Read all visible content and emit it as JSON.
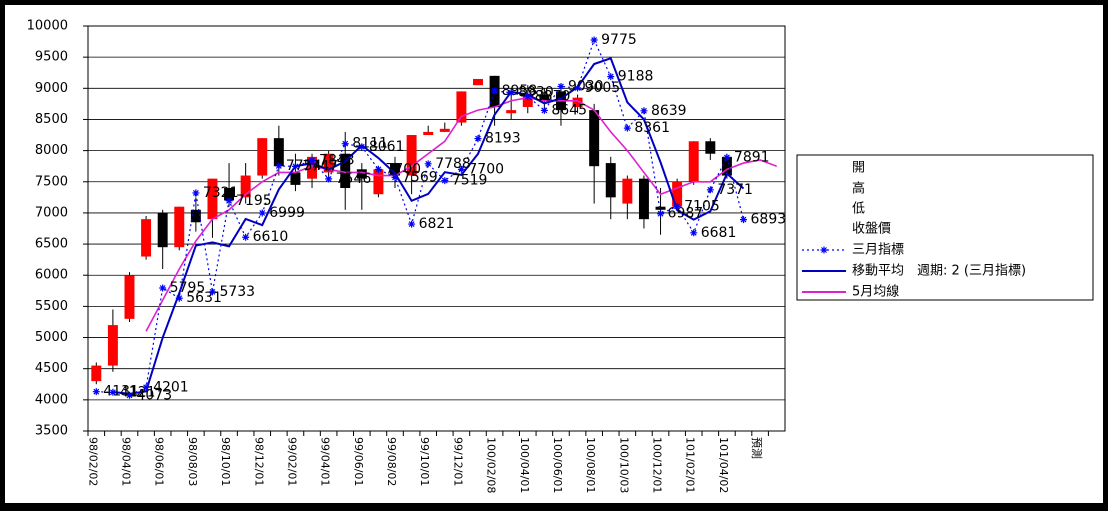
{
  "chart_data": {
    "type": "candlestick",
    "categories": [
      "98/02/02",
      null,
      "98/04/01",
      null,
      "98/06/01",
      null,
      "98/08/03",
      null,
      "98/10/01",
      null,
      "98/12/01",
      null,
      "99/02/01",
      null,
      "99/04/01",
      null,
      "99/06/01",
      null,
      "99/08/02",
      null,
      "99/10/01",
      null,
      "99/12/01",
      null,
      "100/02/08",
      null,
      "100/04/01",
      null,
      "100/06/01",
      null,
      "100/08/01",
      null,
      "100/10/03",
      null,
      "100/12/01",
      null,
      "101/02/01",
      null,
      "101/04/02",
      null,
      "預測",
      null
    ],
    "ylim": [
      3500,
      10000
    ],
    "yticks": [
      3500,
      4000,
      4500,
      5000,
      5500,
      6000,
      6500,
      7000,
      7500,
      8000,
      8500,
      9000,
      9500,
      10000
    ],
    "grid": true,
    "up_color": "#ff0000",
    "down_color": "#000000",
    "series": [
      {
        "name": "開",
        "values": [
          4300,
          4550,
          5300,
          6300,
          7000,
          6450,
          7050,
          6900,
          7400,
          7250,
          7600,
          8200,
          7650,
          7550,
          7650,
          7950,
          7700,
          7300,
          7800,
          7600,
          8250,
          8300,
          8450,
          9050,
          9200,
          8600,
          8700,
          8900,
          8950,
          8700,
          8650,
          7800,
          7150,
          7550,
          7100,
          7100,
          7500,
          8150,
          7900,
          null,
          null,
          null
        ]
      },
      {
        "name": "高",
        "values": [
          4600,
          5450,
          6050,
          6950,
          7050,
          7100,
          7250,
          7550,
          7800,
          7800,
          8200,
          8400,
          7950,
          7950,
          8000,
          8300,
          7800,
          7750,
          7900,
          8250,
          8400,
          8450,
          8950,
          9150,
          9200,
          9000,
          9050,
          9000,
          9050,
          8900,
          8750,
          7900,
          7600,
          7600,
          7400,
          7550,
          8150,
          8200,
          7950,
          null,
          null,
          null
        ]
      },
      {
        "name": "低",
        "values": [
          4250,
          4450,
          5250,
          6250,
          6100,
          6400,
          6700,
          6600,
          7100,
          7150,
          7550,
          7600,
          7350,
          7400,
          7550,
          7050,
          7050,
          7250,
          7400,
          7300,
          8250,
          8300,
          8400,
          9050,
          8400,
          8500,
          8600,
          8700,
          8400,
          8600,
          7150,
          6900,
          6900,
          6750,
          6650,
          7050,
          7450,
          7850,
          7550,
          null,
          null,
          null
        ]
      },
      {
        "name": "收盤價",
        "values": [
          4550,
          5200,
          6000,
          6900,
          6450,
          7100,
          6850,
          7550,
          7200,
          7600,
          8200,
          7750,
          7450,
          7900,
          7950,
          7400,
          7550,
          7700,
          7600,
          8250,
          8300,
          8350,
          8950,
          9150,
          8700,
          8650,
          8900,
          8800,
          8650,
          8850,
          7750,
          7250,
          7550,
          6900,
          7050,
          7500,
          8150,
          7950,
          7600,
          null,
          null,
          null
        ]
      },
      {
        "name": "三月指標",
        "color": "#0000ff",
        "values": [
          4131,
          4121,
          4073,
          4201,
          5795,
          5631,
          7321,
          5733,
          7195,
          6610,
          6999,
          7754,
          7747,
          7843,
          7546,
          8111,
          8061,
          7700,
          7569,
          6821,
          7788,
          7519,
          7700,
          8193,
          8958,
          8930,
          8870,
          8645,
          9030,
          9005,
          9775,
          9188,
          8361,
          8639,
          6987,
          7105,
          6681,
          7371,
          7891,
          6893,
          null,
          null
        ]
      },
      {
        "name": "移動平均　週期: 2 (三月指標)",
        "color": "#0000c0",
        "values": [
          null,
          4126,
          4097,
          4137,
          4998,
          5713,
          6476,
          6527,
          6464,
          6903,
          6805,
          7377,
          7751,
          7795,
          7695,
          7829,
          8086,
          7881,
          7635,
          7195,
          7305,
          7654,
          7610,
          7947,
          8576,
          8944,
          8900,
          8758,
          8838,
          9018,
          9390,
          9482,
          8775,
          8500,
          7813,
          7046,
          6893,
          7026,
          7631,
          7392,
          null,
          null
        ]
      },
      {
        "name": "5月均線",
        "color": "#e020d0",
        "values": [
          null,
          null,
          null,
          5100,
          5600,
          6100,
          6550,
          6900,
          7050,
          7300,
          7500,
          7650,
          7650,
          7750,
          7700,
          7650,
          7650,
          7600,
          7600,
          7750,
          7950,
          8150,
          8550,
          8650,
          8700,
          8800,
          8850,
          8800,
          8800,
          8800,
          8650,
          8300,
          8000,
          7650,
          7300,
          7400,
          7500,
          7500,
          7700,
          7800,
          7850,
          7750
        ]
      }
    ]
  }
}
